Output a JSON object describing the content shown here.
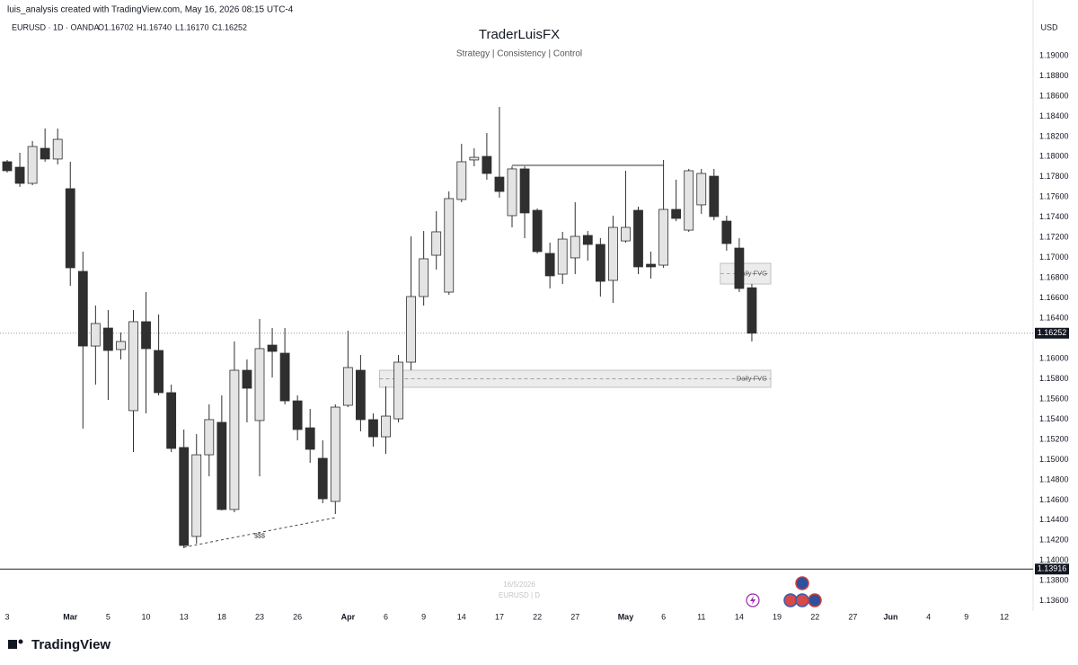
{
  "header": {
    "attribution": "luis_analysis created with TradingView.com, May 16, 2026 08:15 UTC-4",
    "symbol_info": "EURUSD · 1D · OANDA",
    "ohlc": [
      "O1.16702",
      "H1.16740",
      "L1.16170",
      "C1.16252"
    ],
    "currency": "USD"
  },
  "footer": {
    "logo": "TradingView",
    "watermark_date": "16/5/2026",
    "watermark_symbol": "EURUSD | D"
  },
  "chart_data": {
    "type": "candlestick",
    "title": "TraderLuisFX",
    "subtitle": "Strategy | Consistency | Control",
    "x": [
      "2026-02-23",
      "2026-02-24",
      "2026-02-25",
      "2026-02-26",
      "2026-02-27",
      "2026-03-02",
      "2026-03-03",
      "2026-03-04",
      "2026-03-05",
      "2026-03-06",
      "2026-03-09",
      "2026-03-10",
      "2026-03-11",
      "2026-03-12",
      "2026-03-13",
      "2026-03-16",
      "2026-03-17",
      "2026-03-18",
      "2026-03-19",
      "2026-03-20",
      "2026-03-23",
      "2026-03-24",
      "2026-03-25",
      "2026-03-26",
      "2026-03-27",
      "2026-03-30",
      "2026-03-31",
      "2026-04-01",
      "2026-04-02",
      "2026-04-03",
      "2026-04-06",
      "2026-04-07",
      "2026-04-08",
      "2026-04-09",
      "2026-04-10",
      "2026-04-13",
      "2026-04-14",
      "2026-04-15",
      "2026-04-16",
      "2026-04-17",
      "2026-04-20",
      "2026-04-21",
      "2026-04-22",
      "2026-04-23",
      "2026-04-24",
      "2026-04-27",
      "2026-04-28",
      "2026-04-29",
      "2026-04-30",
      "2026-05-01",
      "2026-05-04",
      "2026-05-05",
      "2026-05-06",
      "2026-05-07",
      "2026-05-08",
      "2026-05-11",
      "2026-05-12",
      "2026-05-13",
      "2026-05-14",
      "2026-05-15"
    ],
    "open": [
      1.1795,
      1.17896,
      1.17736,
      1.18083,
      1.17977,
      1.17683,
      1.16864,
      1.16125,
      1.16303,
      1.1609,
      1.15485,
      1.16366,
      1.16081,
      1.15663,
      1.1512,
      1.14239,
      1.15048,
      1.15369,
      1.14506,
      1.15885,
      1.15387,
      1.16134,
      1.16054,
      1.15582,
      1.15315,
      1.15013,
      1.14586,
      1.15538,
      1.15885,
      1.15396,
      1.15226,
      1.15404,
      1.15965,
      1.16615,
      1.17024,
      1.16659,
      1.17576,
      1.17968,
      1.18003,
      1.17798,
      1.17416,
      1.17879,
      1.17469,
      1.17042,
      1.16837,
      1.16998,
      1.1722,
      1.17131,
      1.16775,
      1.17166,
      1.17469,
      1.16935,
      1.16926,
      1.17478,
      1.17273,
      1.17523,
      1.17807,
      1.17362,
      1.17095,
      1.16702
    ],
    "high": [
      1.17968,
      1.18039,
      1.18155,
      1.18279,
      1.18279,
      1.1795,
      1.1706,
      1.16526,
      1.16481,
      1.16259,
      1.16481,
      1.16659,
      1.16437,
      1.15743,
      1.15298,
      1.15253,
      1.15547,
      1.15636,
      1.1617,
      1.15992,
      1.16392,
      1.16303,
      1.16303,
      1.15636,
      1.15502,
      1.15191,
      1.15547,
      1.16277,
      1.16036,
      1.15458,
      1.15725,
      1.16036,
      1.17211,
      1.17264,
      1.1746,
      1.17656,
      1.18128,
      1.18083,
      1.18235,
      1.18493,
      1.17905,
      1.17905,
      1.17487,
      1.17149,
      1.17256,
      1.17549,
      1.17264,
      1.17193,
      1.17416,
      1.17861,
      1.17505,
      1.1706,
      1.17968,
      1.17772,
      1.17879,
      1.17879,
      1.17879,
      1.17416,
      1.17193,
      1.1674
    ],
    "low": [
      1.17843,
      1.17701,
      1.17718,
      1.1795,
      1.17923,
      1.16722,
      1.15307,
      1.15743,
      1.15591,
      1.15992,
      1.15075,
      1.15458,
      1.15636,
      1.15075,
      1.14123,
      1.14167,
      1.14835,
      1.14497,
      1.14479,
      1.15369,
      1.14835,
      1.15814,
      1.15547,
      1.15191,
      1.14968,
      1.14568,
      1.14461,
      1.1552,
      1.1528,
      1.15129,
      1.15057,
      1.15369,
      1.15885,
      1.16526,
      1.16882,
      1.16633,
      1.17549,
      1.17905,
      1.17772,
      1.17594,
      1.173,
      1.17193,
      1.17042,
      1.16695,
      1.16739,
      1.16837,
      1.16971,
      1.16615,
      1.16552,
      1.17149,
      1.16837,
      1.16793,
      1.169,
      1.17362,
      1.17256,
      1.17434,
      1.17371,
      1.17069,
      1.16659,
      1.1617
    ],
    "close": [
      1.17861,
      1.17736,
      1.18101,
      1.17977,
      1.18172,
      1.169,
      1.16125,
      1.16348,
      1.16081,
      1.1617,
      1.16366,
      1.16099,
      1.15663,
      1.15111,
      1.1415,
      1.15048,
      1.15396,
      1.14506,
      1.15885,
      1.15707,
      1.16099,
      1.16072,
      1.15582,
      1.15298,
      1.15102,
      1.14612,
      1.1552,
      1.15912,
      1.15396,
      1.15226,
      1.15431,
      1.15965,
      1.16615,
      1.16989,
      1.17256,
      1.17585,
      1.1795,
      1.17994,
      1.17834,
      1.17656,
      1.17879,
      1.17443,
      1.1706,
      1.1682,
      1.17184,
      1.17211,
      1.17131,
      1.16766,
      1.173,
      1.173,
      1.16909,
      1.16909,
      1.17478,
      1.17389,
      1.17861,
      1.17834,
      1.17407,
      1.1714,
      1.16695,
      1.16252
    ],
    "up_color": "#e4e4e4",
    "down_color": "#2f2f2f",
    "wick_color": "#2f2f2f",
    "ylim": [
      1.135,
      1.19356
    ],
    "yticks": [
      {
        "value": 1.19,
        "label": "1.19000"
      },
      {
        "value": 1.188,
        "label": "1.18800"
      },
      {
        "value": 1.186,
        "label": "1.18600"
      },
      {
        "value": 1.184,
        "label": "1.18400"
      },
      {
        "value": 1.182,
        "label": "1.18200"
      },
      {
        "value": 1.18,
        "label": "1.18000"
      },
      {
        "value": 1.178,
        "label": "1.17800"
      },
      {
        "value": 1.176,
        "label": "1.17600"
      },
      {
        "value": 1.174,
        "label": "1.17400"
      },
      {
        "value": 1.172,
        "label": "1.17200"
      },
      {
        "value": 1.17,
        "label": "1.17000"
      },
      {
        "value": 1.168,
        "label": "1.16800"
      },
      {
        "value": 1.166,
        "label": "1.16600"
      },
      {
        "value": 1.164,
        "label": "1.16400"
      },
      {
        "value": 1.16,
        "label": "1.16000"
      },
      {
        "value": 1.158,
        "label": "1.15800"
      },
      {
        "value": 1.156,
        "label": "1.15600"
      },
      {
        "value": 1.154,
        "label": "1.15400"
      },
      {
        "value": 1.152,
        "label": "1.15200"
      },
      {
        "value": 1.15,
        "label": "1.15000"
      },
      {
        "value": 1.148,
        "label": "1.14800"
      },
      {
        "value": 1.146,
        "label": "1.14600"
      },
      {
        "value": 1.144,
        "label": "1.14400"
      },
      {
        "value": 1.142,
        "label": "1.14200"
      },
      {
        "value": 1.14,
        "label": "1.14000"
      },
      {
        "value": 1.138,
        "label": "1.13800"
      },
      {
        "value": 1.136,
        "label": "1.13600"
      }
    ],
    "xticks": [
      {
        "value": "2026-02-23",
        "label": "3"
      },
      {
        "value": "2026-03-02",
        "label": "Mar"
      },
      {
        "value": "2026-03-05",
        "label": "5"
      },
      {
        "value": "2026-03-10",
        "label": "10"
      },
      {
        "value": "2026-03-13",
        "label": "13"
      },
      {
        "value": "2026-03-18",
        "label": "18"
      },
      {
        "value": "2026-03-23",
        "label": "23"
      },
      {
        "value": "2026-03-26",
        "label": "26"
      },
      {
        "value": "2026-04-01",
        "label": "Apr"
      },
      {
        "value": "2026-04-06",
        "label": "6"
      },
      {
        "value": "2026-04-09",
        "label": "9"
      },
      {
        "value": "2026-04-14",
        "label": "14"
      },
      {
        "value": "2026-04-17",
        "label": "17"
      },
      {
        "value": "2026-04-22",
        "label": "22"
      },
      {
        "value": "2026-04-27",
        "label": "27"
      },
      {
        "value": "2026-05-01",
        "label": "May"
      },
      {
        "value": "2026-05-06",
        "label": "6"
      },
      {
        "value": "2026-05-11",
        "label": "11"
      },
      {
        "value": "2026-05-14",
        "label": "14"
      },
      {
        "value": "2026-05-19",
        "label": "19"
      },
      {
        "value": "2026-05-22",
        "label": "22"
      },
      {
        "value": "2026-05-27",
        "label": "27"
      },
      {
        "value": "2026-06-01",
        "label": "Jun"
      },
      {
        "value": "2026-06-04",
        "label": "4"
      },
      {
        "value": "2026-06-09",
        "label": "9"
      },
      {
        "value": "2026-06-12",
        "label": "12"
      }
    ],
    "price_line": 1.16252,
    "hline": 1.13916,
    "levels": [
      {
        "value": 1.17914,
        "start": "2026-04-20",
        "end": "2026-05-06"
      }
    ],
    "zones": [
      {
        "label": "Daily FVG",
        "top": 1.16944,
        "bottom": 1.16739,
        "start": "2026-05-13",
        "end": "2026-05-18"
      },
      {
        "label": "Daily FVG",
        "top": 1.15885,
        "bottom": 1.15716,
        "start": "2026-04-06",
        "end": "2026-05-18"
      }
    ],
    "trendline": {
      "x": [
        "2026-03-13",
        "2026-03-31"
      ],
      "y": [
        1.14132,
        1.14425
      ],
      "label": "$$$"
    }
  }
}
